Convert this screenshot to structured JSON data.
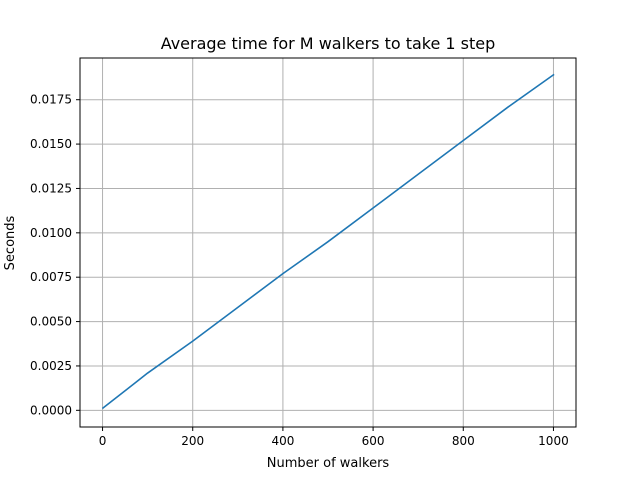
{
  "chart_data": {
    "type": "line",
    "title": "Average time for M walkers to take 1 step",
    "xlabel": "Number of walkers",
    "ylabel": "Seconds",
    "xlim": [
      -50,
      1050
    ],
    "ylim": [
      -0.00094,
      0.01985
    ],
    "xticks": [
      0,
      200,
      400,
      600,
      800,
      1000
    ],
    "xtick_labels": [
      "0",
      "200",
      "400",
      "600",
      "800",
      "1000"
    ],
    "yticks": [
      0.0,
      0.0025,
      0.005,
      0.0075,
      0.01,
      0.0125,
      0.015,
      0.0175
    ],
    "ytick_labels": [
      "0.0000",
      "0.0025",
      "0.0050",
      "0.0075",
      "0.0100",
      "0.0125",
      "0.0150",
      "0.0175"
    ],
    "grid": true,
    "series": [
      {
        "color": "#1f77b4",
        "x": [
          1,
          50,
          100,
          200,
          300,
          400,
          500,
          600,
          700,
          800,
          900,
          1000
        ],
        "y": [
          0.00013,
          0.0011,
          0.0021,
          0.0039,
          0.0058,
          0.0077,
          0.0095,
          0.0114,
          0.0133,
          0.0152,
          0.0171,
          0.0189
        ]
      }
    ]
  }
}
